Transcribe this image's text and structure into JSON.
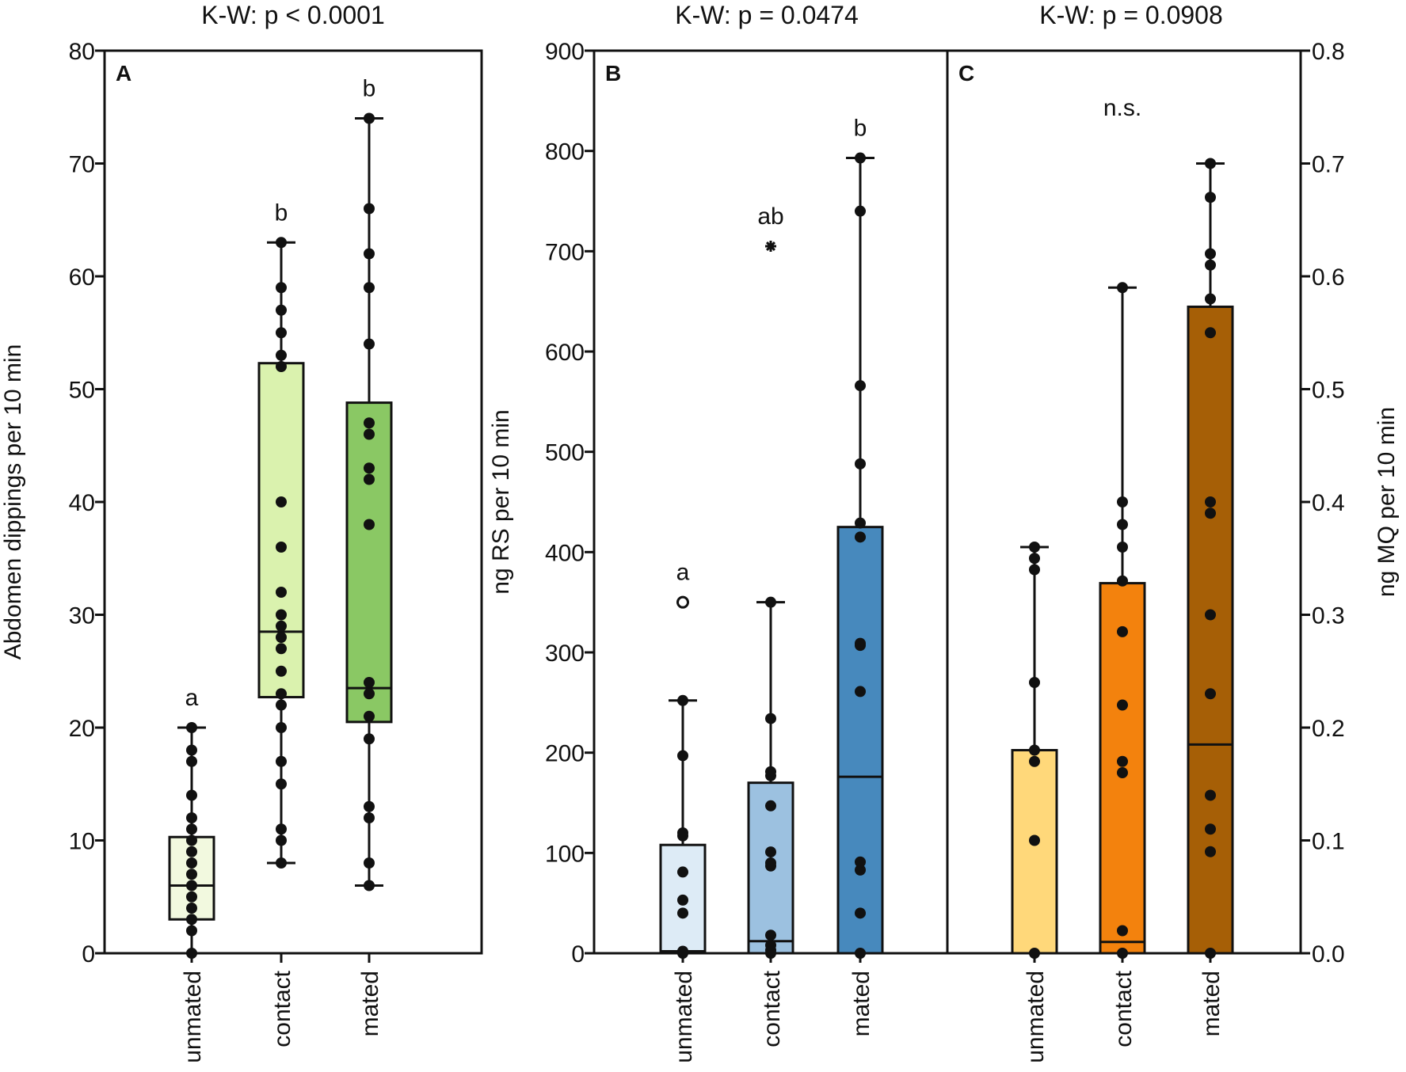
{
  "chart_data": [
    {
      "id": "A",
      "type": "box",
      "panel_label": "A",
      "title": "K-W: p < 0.0001",
      "ylabel": "Abdomen dippings per 10 min",
      "ylim": [
        0,
        80
      ],
      "yticks": [
        "0",
        "10",
        "20",
        "30",
        "40",
        "50",
        "60",
        "70",
        "80"
      ],
      "categories": [
        "unmated",
        "contact",
        "mated"
      ],
      "letters": [
        "a",
        "b",
        "b"
      ],
      "colors": [
        "#f2f9df",
        "#daf2ae",
        "#8ac864"
      ],
      "boxes": [
        {
          "q1": 3,
          "median": 6,
          "q3": 10.3,
          "whisker_low": 0,
          "whisker_high": 20,
          "points": [
            0,
            2,
            3,
            4,
            5,
            6,
            7,
            8,
            9,
            10,
            11,
            12,
            14,
            17,
            18,
            20
          ]
        },
        {
          "q1": 22.7,
          "median": 28.5,
          "q3": 52.3,
          "whisker_low": 8,
          "whisker_high": 63,
          "points": [
            8,
            10,
            11,
            15,
            17,
            20,
            22,
            23,
            25,
            27,
            28,
            29,
            30,
            32,
            36,
            40,
            52,
            53,
            55,
            57,
            59,
            63
          ]
        },
        {
          "q1": 20.5,
          "median": 23.5,
          "q3": 48.8,
          "whisker_low": 6,
          "whisker_high": 74,
          "points": [
            6,
            8,
            12,
            13,
            19,
            21,
            23,
            24,
            38,
            42,
            43,
            46,
            47,
            54,
            59,
            62,
            66,
            74
          ]
        }
      ]
    },
    {
      "id": "B",
      "type": "box",
      "panel_label": "B",
      "title": "K-W: p = 0.0474",
      "ylabel": "ng RS per 10 min",
      "ylim": [
        0,
        900
      ],
      "yticks": [
        "0",
        "100",
        "200",
        "300",
        "400",
        "500",
        "600",
        "700",
        "800",
        "900"
      ],
      "categories": [
        "unmated",
        "contact",
        "mated"
      ],
      "letters": [
        "a",
        "ab",
        "b"
      ],
      "colors": [
        "#ddebf6",
        "#9cc1e0",
        "#4789bd"
      ],
      "boxes": [
        {
          "q1": 0,
          "median": 2,
          "q3": 108,
          "whisker_low": 0,
          "whisker_high": 252,
          "points": [
            0,
            2,
            40,
            53,
            81,
            117,
            120,
            197,
            252
          ],
          "outliers_open": [
            350
          ]
        },
        {
          "q1": 0,
          "median": 12,
          "q3": 170,
          "whisker_low": 0,
          "whisker_high": 350,
          "points": [
            0,
            3,
            8,
            18,
            87,
            90,
            101,
            147,
            177,
            181,
            234,
            350
          ],
          "outliers_star": [
            705
          ]
        },
        {
          "q1": 0,
          "median": 176,
          "q3": 425,
          "whisker_low": 0,
          "whisker_high": 793,
          "points": [
            0,
            40,
            83,
            91,
            261,
            307,
            309,
            415,
            429,
            488,
            566,
            740,
            793
          ]
        }
      ]
    },
    {
      "id": "C",
      "type": "box",
      "panel_label": "C",
      "title": "K-W: p = 0.0908",
      "ylabel": "ng MQ per 10 min",
      "ylim": [
        0,
        0.8
      ],
      "yticks": [
        "0.0",
        "0.1",
        "0.2",
        "0.3",
        "0.4",
        "0.5",
        "0.6",
        "0.7",
        "0.8"
      ],
      "categories": [
        "unmated",
        "contact",
        "mated"
      ],
      "letters": [
        "",
        "n.s.",
        ""
      ],
      "colors": [
        "#ffd87a",
        "#f3820d",
        "#a65f06"
      ],
      "boxes": [
        {
          "q1": 0,
          "median": 0,
          "q3": 0.18,
          "whisker_low": 0,
          "whisker_high": 0.36,
          "points": [
            0,
            0.1,
            0.17,
            0.18,
            0.24,
            0.34,
            0.35,
            0.36
          ]
        },
        {
          "q1": 0,
          "median": 0.01,
          "q3": 0.328,
          "whisker_low": 0,
          "whisker_high": 0.59,
          "points": [
            0,
            0.02,
            0.16,
            0.17,
            0.22,
            0.285,
            0.33,
            0.36,
            0.38,
            0.4,
            0.59
          ]
        },
        {
          "q1": 0,
          "median": 0.185,
          "q3": 0.573,
          "whisker_low": 0,
          "whisker_high": 0.7,
          "points": [
            0,
            0.09,
            0.11,
            0.14,
            0.23,
            0.3,
            0.39,
            0.4,
            0.55,
            0.58,
            0.61,
            0.62,
            0.67,
            0.7
          ]
        }
      ]
    }
  ]
}
